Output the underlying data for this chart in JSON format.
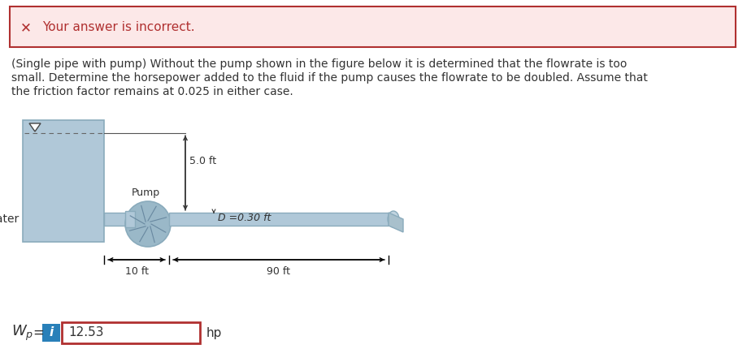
{
  "error_box_bg": "#fce8e8",
  "error_box_border": "#b03030",
  "error_icon_color": "#b03030",
  "error_text": "Your answer is incorrect.",
  "error_text_color": "#b03030",
  "body_text_line1": "(Single pipe with pump) Without the pump shown in the figure below it is determined that the flowrate is too",
  "body_text_line2": "small. Determine the horsepower added to the fluid if the pump causes the flowrate to be doubled. Assume that",
  "body_text_line3": "the friction factor remains at 0.025 in either case.",
  "tank_color": "#b0c8d8",
  "tank_border": "#8aabbc",
  "pipe_color": "#b0c8d8",
  "pipe_border": "#8aabbc",
  "pump_color": "#9ab8c8",
  "pump_border": "#8aabbc",
  "water_label": "Water",
  "dim_50ft": "5.0 ft",
  "pump_label": "Pump",
  "dim_D": "D =0.30 ft",
  "dim_10ft": "10 ft",
  "dim_90ft": "90 ft",
  "answer_value": "12.53",
  "answer_unit": "hp",
  "info_btn_color": "#2980b9",
  "answer_box_border": "#b03030",
  "bg_color": "#ffffff",
  "text_color": "#333333"
}
